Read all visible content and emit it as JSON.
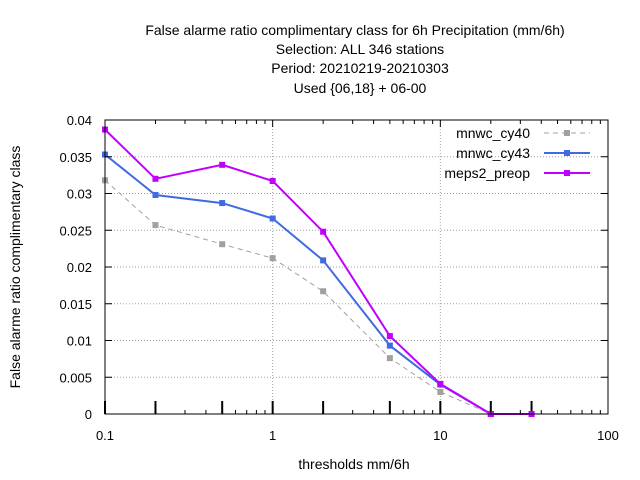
{
  "chart_data": {
    "type": "line",
    "title_lines": [
      "False alarme ratio complimentary class  for 6h Precipitation (mm/6h)",
      "Selection: ALL    346 stations",
      "Period: 20210219-20210303",
      "Used {06,18} + 06-00"
    ],
    "xlabel": "thresholds mm/6h",
    "ylabel": "False alarme ratio complimentary class",
    "xscale": "log",
    "xlim": [
      0.1,
      100
    ],
    "ylim": [
      0,
      0.04
    ],
    "x_ticks": [
      "0.1",
      "1",
      "10",
      "100"
    ],
    "y_ticks": [
      "0",
      "0.005",
      "0.01",
      "0.015",
      "0.02",
      "0.025",
      "0.03",
      "0.035",
      "0.04"
    ],
    "grid": true,
    "legend_position": "top-right",
    "x": [
      0.1,
      0.2,
      0.5,
      1,
      2,
      5,
      10,
      20,
      35
    ],
    "series": [
      {
        "name": "mnwc_cy40",
        "color": "#a0a0a0",
        "dashed": true,
        "values": [
          0.0318,
          0.0257,
          0.0231,
          0.0212,
          0.0167,
          0.0076,
          0.003,
          0.0,
          0.0
        ]
      },
      {
        "name": "mnwc_cy43",
        "color": "#4169e1",
        "dashed": false,
        "values": [
          0.0353,
          0.0298,
          0.0287,
          0.0266,
          0.0209,
          0.0093,
          0.004,
          0.0,
          0.0
        ]
      },
      {
        "name": "meps2_preop",
        "color": "#c000ff",
        "dashed": false,
        "values": [
          0.0387,
          0.032,
          0.0339,
          0.0317,
          0.0248,
          0.0106,
          0.0041,
          0.0,
          0.0
        ]
      }
    ],
    "observation_tick_x": [
      0.1,
      0.2,
      0.5,
      1,
      2,
      5,
      10,
      20,
      35
    ]
  }
}
